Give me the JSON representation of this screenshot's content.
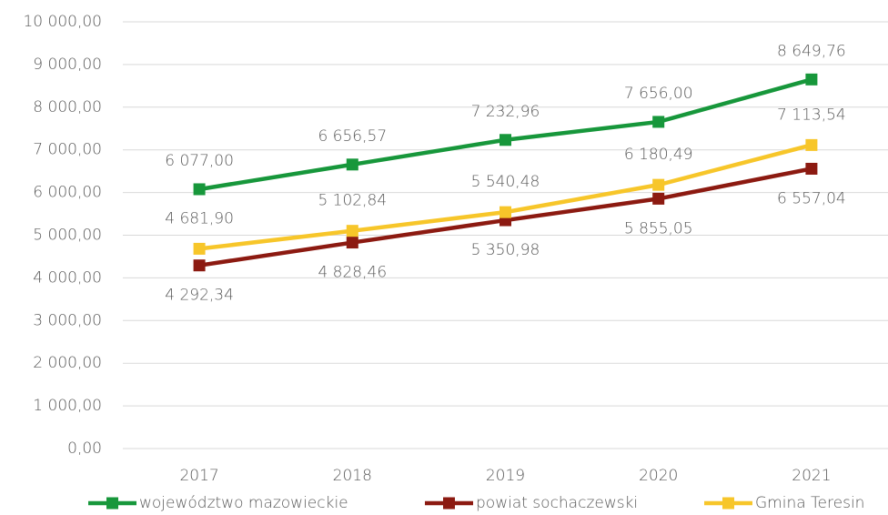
{
  "chart_data": {
    "type": "line",
    "categories": [
      "2017",
      "2018",
      "2019",
      "2020",
      "2021"
    ],
    "series": [
      {
        "name": "województwo mazowieckie",
        "color": "#17973b",
        "values": [
          6077.0,
          6656.57,
          7232.96,
          7656.0,
          8649.76
        ],
        "value_labels": [
          "6 077,00",
          "6 656,57",
          "7 232,96",
          "7 656,00",
          "8 649,76"
        ]
      },
      {
        "name": "powiat sochaczewski",
        "color": "#8c1a11",
        "values": [
          4292.34,
          4828.46,
          5350.98,
          5855.05,
          6557.04
        ],
        "value_labels": [
          "4 292,34",
          "4 828,46",
          "5 350,98",
          "5 855,05",
          "6 557,04"
        ]
      },
      {
        "name": "Gmina Teresin",
        "color": "#f7c62a",
        "values": [
          4681.9,
          5102.84,
          5540.48,
          6180.49,
          7113.54
        ],
        "value_labels": [
          "4 681,90",
          "5 102,84",
          "5 540,48",
          "6 180,49",
          "7 113,54"
        ]
      }
    ],
    "ylim": [
      0,
      10000
    ],
    "yticks": [
      {
        "value": 0,
        "label": "0,00"
      },
      {
        "value": 1000,
        "label": "1 000,00"
      },
      {
        "value": 2000,
        "label": "2 000,00"
      },
      {
        "value": 3000,
        "label": "3 000,00"
      },
      {
        "value": 4000,
        "label": "4 000,00"
      },
      {
        "value": 5000,
        "label": "5 000,00"
      },
      {
        "value": 6000,
        "label": "6 000,00"
      },
      {
        "value": 7000,
        "label": "7 000,00"
      },
      {
        "value": 8000,
        "label": "8 000,00"
      },
      {
        "value": 9000,
        "label": "9 000,00"
      },
      {
        "value": 10000,
        "label": "10 000,00"
      }
    ],
    "grid": true,
    "legend": "bottom"
  }
}
